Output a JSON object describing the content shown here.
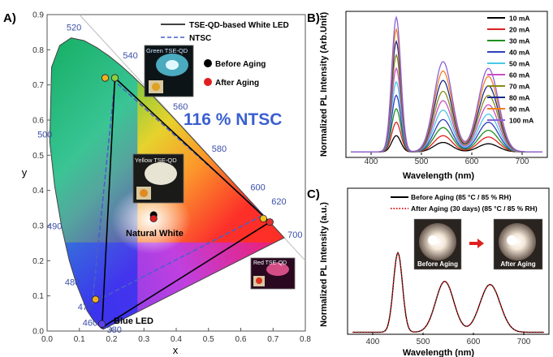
{
  "panels": {
    "a": "A)",
    "b": "B)",
    "c": "C)"
  },
  "chart_data": [
    {
      "type": "scatter",
      "panel": "A",
      "xlabel": "x",
      "ylabel": "y",
      "xlim": [
        0.0,
        0.8
      ],
      "ylim": [
        0.0,
        0.9
      ],
      "xticks": [
        "0.0",
        "0.1",
        "0.2",
        "0.3",
        "0.4",
        "0.5",
        "0.6",
        "0.7",
        "0.8"
      ],
      "yticks": [
        "0.0",
        "0.1",
        "0.2",
        "0.3",
        "0.4",
        "0.5",
        "0.6",
        "0.7",
        "0.8",
        "0.9"
      ],
      "wavelength_labels": [
        "380",
        "460",
        "470",
        "480",
        "490",
        "500",
        "520",
        "540",
        "560",
        "580",
        "600",
        "620",
        "700"
      ],
      "legend": [
        {
          "label": "TSE-QD-based White LED",
          "style": "solid",
          "color": "#000000"
        },
        {
          "label": "NTSC",
          "style": "dashed",
          "color": "#4a5fc8"
        },
        {
          "label": "Before Aging",
          "marker": "circle",
          "color": "#000000"
        },
        {
          "label": "After Aging",
          "marker": "circle",
          "color": "#e02020"
        }
      ],
      "tse_triangle": [
        [
          0.17,
          0.01
        ],
        [
          0.21,
          0.72
        ],
        [
          0.69,
          0.31
        ]
      ],
      "ntsc_triangle": [
        [
          0.14,
          0.08
        ],
        [
          0.21,
          0.71
        ],
        [
          0.67,
          0.33
        ]
      ],
      "points": {
        "green_after": [
          0.18,
          0.72
        ],
        "green_before": [
          0.21,
          0.72
        ],
        "red_before": [
          0.67,
          0.32
        ],
        "red_after": [
          0.69,
          0.31
        ],
        "blue_before": [
          0.17,
          0.02
        ],
        "blue_after": [
          0.15,
          0.09
        ],
        "white_before": [
          0.33,
          0.33
        ],
        "white_after": [
          0.33,
          0.32
        ]
      },
      "annotations": {
        "ntsc_ratio": "116 % NTSC",
        "natural_white": "Natural White",
        "blue_led": "Blue LED",
        "green_inset": "Green TSE-QD",
        "yellow_inset": "Yellow TSE-QD",
        "red_inset": "Red TSE-QD"
      }
    },
    {
      "type": "line",
      "panel": "B",
      "xlabel": "Wavelength (nm)",
      "ylabel": "Normalized PL Intensity (Arb.Unit)",
      "xlim": [
        350,
        750
      ],
      "xticks": [
        "400",
        "500",
        "600",
        "700"
      ],
      "peaks_nm": [
        450,
        543,
        633
      ],
      "series": [
        {
          "name": "10 mA",
          "color": "#000000",
          "values": [
            0.12,
            0.07,
            0.06
          ]
        },
        {
          "name": "20 mA",
          "color": "#e02020",
          "values": [
            0.22,
            0.12,
            0.11
          ]
        },
        {
          "name": "30 mA",
          "color": "#1f8f1f",
          "values": [
            0.32,
            0.18,
            0.16
          ]
        },
        {
          "name": "40 mA",
          "color": "#2f3fbf",
          "values": [
            0.42,
            0.24,
            0.22
          ]
        },
        {
          "name": "50 mA",
          "color": "#48c8e8",
          "values": [
            0.52,
            0.31,
            0.28
          ]
        },
        {
          "name": "60 mA",
          "color": "#c850c8",
          "values": [
            0.62,
            0.38,
            0.35
          ]
        },
        {
          "name": "70 mA",
          "color": "#8a8a1a",
          "values": [
            0.72,
            0.45,
            0.42
          ]
        },
        {
          "name": "80 mA",
          "color": "#1a2a8a",
          "values": [
            0.82,
            0.53,
            0.49
          ]
        },
        {
          "name": "90 mA",
          "color": "#f08020",
          "values": [
            0.91,
            0.6,
            0.56
          ]
        },
        {
          "name": "100 mA",
          "color": "#8a60d8",
          "values": [
            1.0,
            0.67,
            0.62
          ]
        }
      ]
    },
    {
      "type": "line",
      "panel": "C",
      "xlabel": "Wavelength (nm)",
      "ylabel": "Normalized PL Intensity (a.u.)",
      "xlim": [
        350,
        750
      ],
      "xticks": [
        "400",
        "500",
        "600",
        "700"
      ],
      "peaks_nm": [
        450,
        543,
        633
      ],
      "series": [
        {
          "name": "Before Aging (85 °C / 85 % RH)",
          "color": "#000000",
          "style": "solid",
          "values": [
            1.0,
            0.64,
            0.6
          ]
        },
        {
          "name": "After Aging (30 days) (85 °C / 85 % RH)",
          "color": "#e02020",
          "style": "dotted",
          "values": [
            1.0,
            0.64,
            0.6
          ]
        }
      ],
      "insets": {
        "before": "Before Aging",
        "after": "After Aging"
      }
    }
  ]
}
